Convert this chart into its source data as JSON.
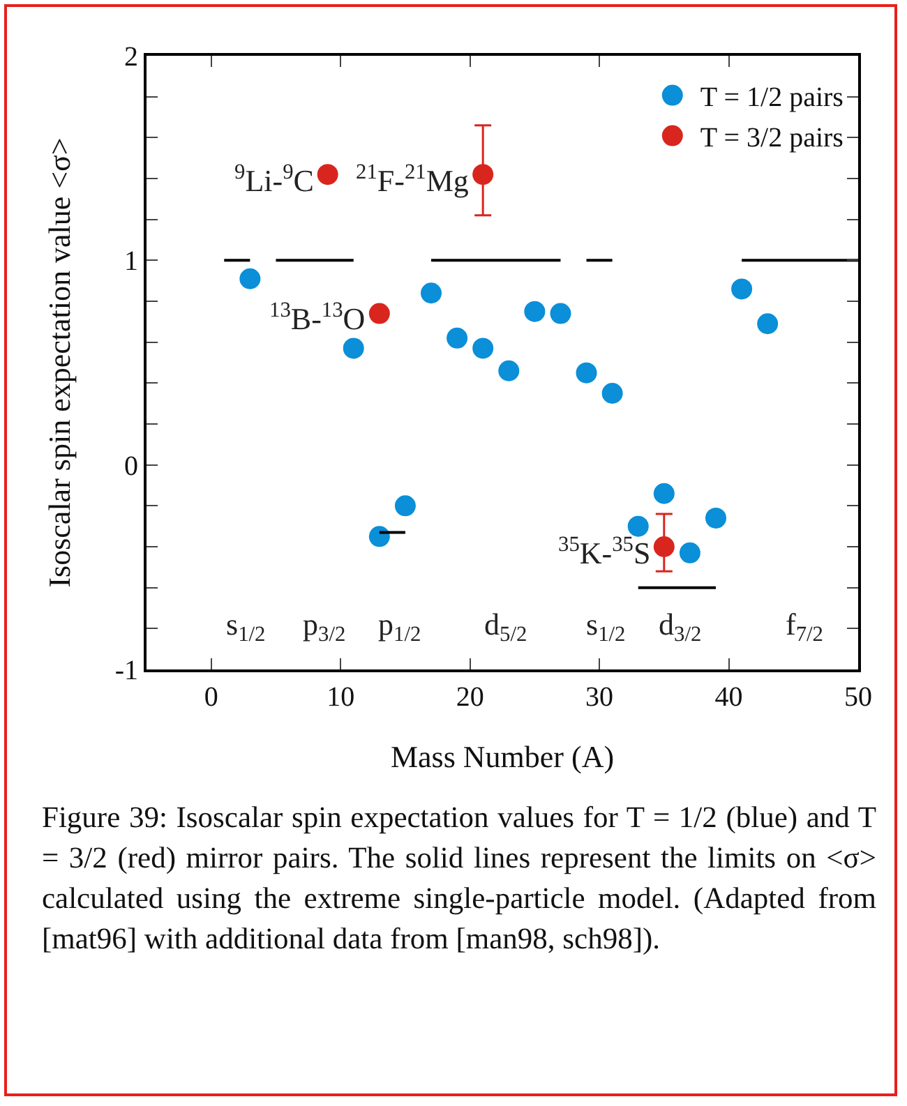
{
  "chart_data": {
    "type": "scatter",
    "xlabel": "Mass Number (A)",
    "ylabel": "Isoscalar spin expectation value <σ>",
    "xlim": [
      -5,
      50
    ],
    "ylim": [
      -1,
      2
    ],
    "xticks": [
      0,
      10,
      20,
      30,
      40,
      50
    ],
    "yticks": [
      -1,
      {
        "value": -0.8,
        "label": null
      },
      {
        "value": -0.6,
        "label": null
      },
      {
        "value": -0.4,
        "label": null
      },
      {
        "value": -0.2,
        "label": null
      },
      0,
      {
        "value": 0.2,
        "label": null
      },
      {
        "value": 0.4,
        "label": null
      },
      {
        "value": 0.6,
        "label": null
      },
      {
        "value": 0.8,
        "label": null
      },
      1,
      {
        "value": 1.2,
        "label": null
      },
      {
        "value": 1.4,
        "label": null
      },
      {
        "value": 1.6,
        "label": null
      },
      {
        "value": 1.8,
        "label": null
      },
      2
    ],
    "grid": false,
    "legend": "top right",
    "marker": "circle",
    "series": [
      {
        "name": "T = 1/2 pairs",
        "color": "#0a8fd8",
        "x": [
          3,
          11,
          13,
          15,
          17,
          19,
          21,
          23,
          25,
          27,
          29,
          31,
          33,
          35,
          37,
          39,
          41,
          43
        ],
        "values": [
          0.91,
          0.57,
          -0.35,
          -0.2,
          0.84,
          0.62,
          0.57,
          0.46,
          0.75,
          0.74,
          0.45,
          0.35,
          -0.3,
          -0.14,
          -0.43,
          -0.26,
          0.86,
          0.69
        ]
      },
      {
        "name": "T = 3/2 pairs",
        "color": "#d8261f",
        "x": [
          9,
          13,
          21,
          35
        ],
        "values": [
          1.42,
          0.74,
          1.42,
          -0.4
        ],
        "errors": [
          null,
          null,
          [
            1.22,
            1.66
          ],
          [
            -0.52,
            -0.24
          ]
        ]
      },
      {
        "type": "line",
        "color": "#000000",
        "x": [
          1,
          3
        ],
        "values": [
          1,
          1
        ],
        "marker": "none"
      },
      {
        "type": "line",
        "color": "#000000",
        "x": [
          5,
          11
        ],
        "values": [
          1,
          1
        ],
        "marker": "none"
      },
      {
        "type": "line",
        "color": "#000000",
        "x": [
          17,
          27
        ],
        "values": [
          1,
          1
        ],
        "marker": "none"
      },
      {
        "type": "line",
        "color": "#000000",
        "x": [
          29,
          31
        ],
        "values": [
          1,
          1
        ],
        "marker": "none"
      },
      {
        "type": "line",
        "color": "#000000",
        "x": [
          41,
          50
        ],
        "values": [
          1,
          1
        ],
        "marker": "none"
      },
      {
        "type": "line",
        "color": "#000000",
        "x": [
          13,
          15
        ],
        "values": [
          -0.33,
          -0.33
        ],
        "marker": "none"
      },
      {
        "type": "line",
        "color": "#000000",
        "x": [
          33,
          39
        ],
        "values": [
          -0.6,
          -0.6
        ],
        "marker": "none"
      }
    ],
    "annotations": [
      {
        "text": "$^{9}$Li-$^{9}$C",
        "x": 9,
        "y": 1.42
      },
      {
        "text": "$^{21}$F-$^{21}$Mg",
        "x": 21,
        "y": 1.42
      },
      {
        "text": "$^{13}$B-$^{13}$O",
        "x": 13,
        "y": 0.74
      },
      {
        "text": "$^{35}$K-$^{35}$S",
        "x": 35,
        "y": -0.4
      },
      "s$_{1/2}$",
      "p$_{3/2}$",
      "p$_{1/2}$",
      "d$_{5/2}$",
      "s$_{1/2}$",
      "d$_{3/2}$",
      "f$_{7/2}$",
      "Figure 39: Isoscalar spin expectation values for T = 1/2 (blue) and T = 3/2 (red) mirror pairs. The solid lines represent the limits on <σ> calculated using the extreme single-particle model. (Adapted from [mat96] with additional data from [man98, sch98])."
    ]
  }
}
